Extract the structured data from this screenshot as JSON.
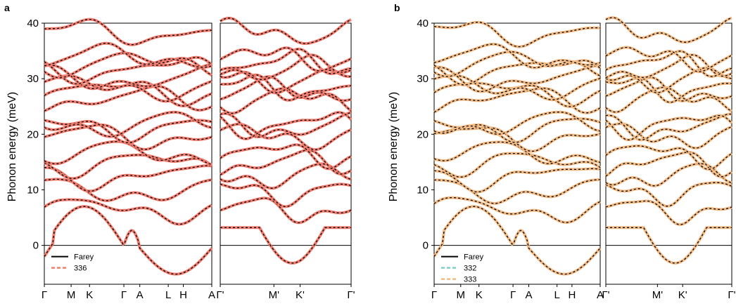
{
  "chart_data": [
    {
      "type": "line",
      "panel_label": "a",
      "ylabel": "Phonon energy (meV)",
      "ylim": [
        -7,
        40
      ],
      "yticks": [
        "40",
        "30",
        "20",
        "10",
        "0"
      ],
      "path_labels": [
        "Γ",
        "M",
        "K",
        "Γ",
        "A",
        "L",
        "H",
        "A"
      ],
      "path_labels_right": [
        "Γ'",
        "M'",
        "K'",
        "Γ'"
      ],
      "legend": [
        {
          "label": "Farey",
          "color": "#000000",
          "style": "solid"
        },
        {
          "label": "336",
          "color": "#f07d6e",
          "style": "dashed"
        }
      ],
      "colors": {
        "farey": "#000000",
        "fit1": "#f07d6e"
      },
      "bands_at_gamma_meV": [
        6.5,
        9.8,
        12.5,
        14.8,
        16.5,
        19.7,
        21.3,
        21.8,
        26.3,
        27.8,
        28.4,
        30.0,
        31.7,
        32.7,
        33.8,
        38.4
      ],
      "acoustic_min_meV": -3.2,
      "negative_branch_min_meV": -5.2
    },
    {
      "type": "line",
      "panel_label": "b",
      "ylabel": "Phonon energy (meV)",
      "ylim": [
        -7,
        40
      ],
      "yticks": [
        "40",
        "30",
        "20",
        "10",
        "0"
      ],
      "path_labels": [
        "Γ",
        "M",
        "K",
        "Γ",
        "A",
        "L",
        "H",
        "A"
      ],
      "path_labels_right": [
        "Γ'",
        "M'",
        "K'",
        "Γ'"
      ],
      "legend": [
        {
          "label": "Farey",
          "color": "#000000",
          "style": "solid"
        },
        {
          "label": "332",
          "color": "#7ecfc6",
          "style": "dashed"
        },
        {
          "label": "333",
          "color": "#f3bb84",
          "style": "dashed"
        }
      ],
      "colors": {
        "farey": "#000000",
        "fit1": "#7ecfc6",
        "fit2": "#f3bb84"
      },
      "bands_at_gamma_meV": [
        6.5,
        9.8,
        12.5,
        14.8,
        16.5,
        19.7,
        21.3,
        21.8,
        26.3,
        27.8,
        28.4,
        30.0,
        31.7,
        32.7,
        33.8,
        38.4
      ],
      "acoustic_min_meV": -3.2,
      "negative_branch_min_meV": -5.2
    }
  ]
}
